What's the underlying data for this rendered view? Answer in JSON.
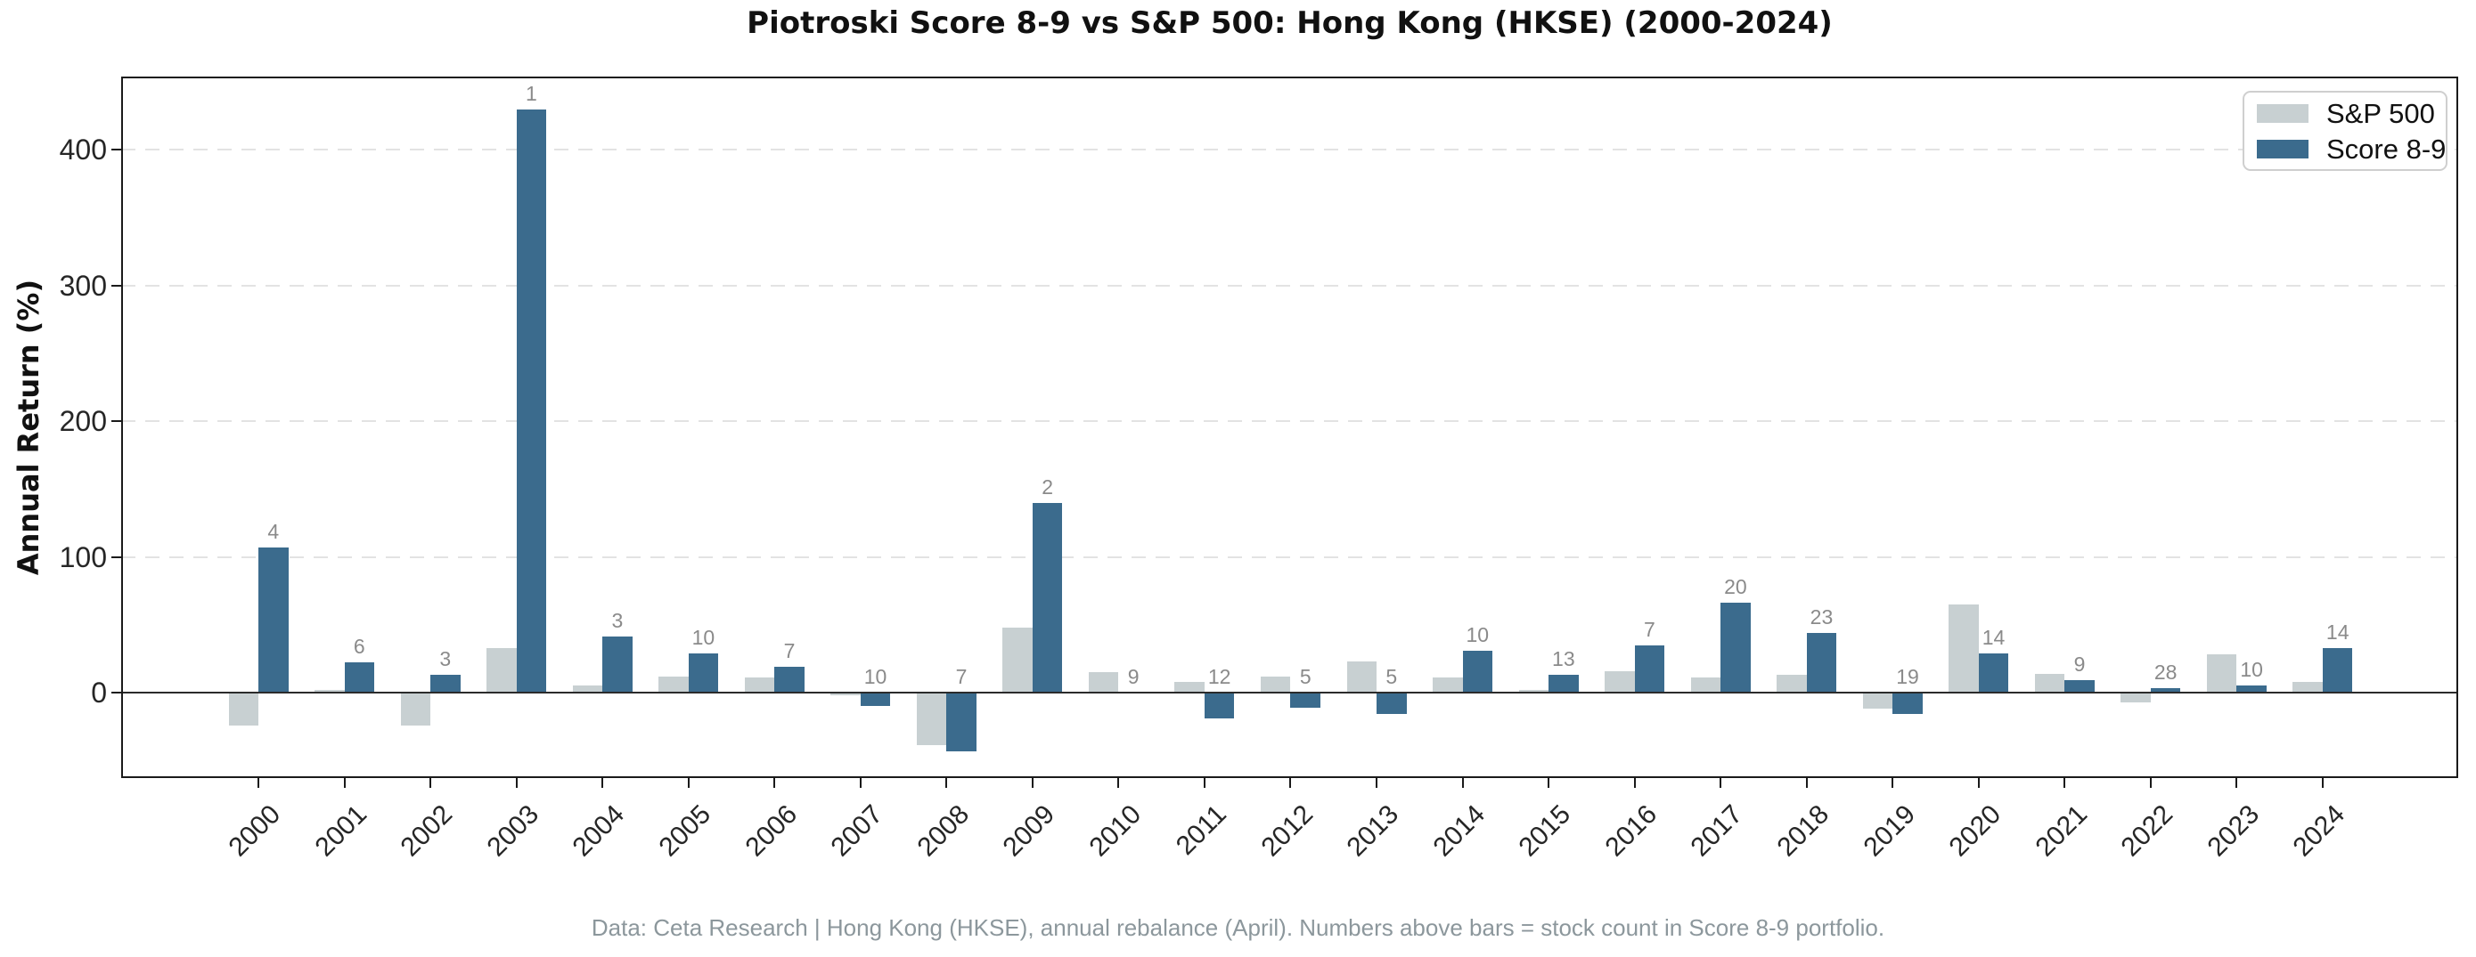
{
  "title": "Piotroski Score 8-9 vs S&P 500: Hong Kong (HKSE) (2000-2024)",
  "footer": "Data: Ceta Research | Hong Kong (HKSE), annual rebalance (April). Numbers above bars = stock count in Score 8-9 portfolio.",
  "legend": {
    "position": "upper right",
    "items": [
      {
        "label": "S&P 500",
        "color": "#c8d0d2"
      },
      {
        "label": "Score 8-9",
        "color": "#3b6b8d"
      }
    ]
  },
  "chart_data": {
    "type": "bar",
    "title": "Piotroski Score 8-9 vs S&P 500: Hong Kong (HKSE) (2000-2024)",
    "xlabel": "",
    "ylabel": "Annual Return (%)",
    "categories": [
      2000,
      2001,
      2002,
      2003,
      2004,
      2005,
      2006,
      2007,
      2008,
      2009,
      2010,
      2011,
      2012,
      2013,
      2014,
      2015,
      2016,
      2017,
      2018,
      2019,
      2020,
      2021,
      2022,
      2023,
      2024
    ],
    "series": [
      {
        "name": "S&P 500",
        "color": "#c8d0d2",
        "values": [
          -24,
          2,
          -24,
          33,
          5,
          12,
          11,
          -2,
          -39,
          48,
          15,
          8,
          12,
          23,
          11,
          2,
          16,
          11,
          13,
          -12,
          65,
          14,
          -7,
          28,
          8
        ]
      },
      {
        "name": "Score 8-9",
        "color": "#3b6b8d",
        "values": [
          107,
          22,
          13,
          430,
          41,
          29,
          19,
          -10,
          -43,
          140,
          0,
          -19,
          -11,
          -16,
          31,
          13,
          35,
          66,
          44,
          -16,
          29,
          9,
          3,
          5,
          33
        ]
      }
    ],
    "bar_count_labels": {
      "meaning": "stock count in Score 8-9 portfolio, printed above bars",
      "values": [
        4,
        6,
        3,
        1,
        3,
        10,
        7,
        10,
        7,
        2,
        9,
        12,
        5,
        5,
        10,
        13,
        7,
        20,
        23,
        19,
        14,
        9,
        28,
        10,
        14
      ]
    },
    "yticks": [
      0,
      100,
      200,
      300,
      400
    ],
    "ylim": [
      -63,
      454
    ],
    "grid": "horizontal dashed gridlines at 100/200/300/400",
    "zero_line": true,
    "legend_position": "upper right"
  },
  "style_colors": {
    "bar_gray": "#c8d0d2",
    "bar_blue": "#3b6b8d",
    "gridline": "#e3e3e3",
    "zero_line": "#2b2b2b",
    "spine": "#1a1a1a",
    "count_label": "#8a8a8a",
    "footer_text": "#8c979c",
    "tick_text": "#262626"
  }
}
